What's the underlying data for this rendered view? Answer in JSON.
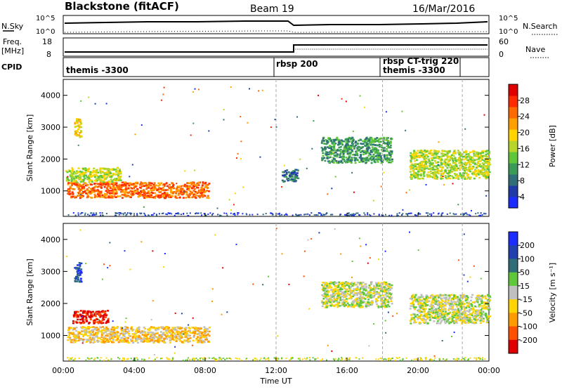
{
  "header": {
    "station": "Blackstone (fitACF)",
    "beam": "Beam 19",
    "date": "16/Mar/2016"
  },
  "noise_panel": {
    "left_label": "N.Sky",
    "right_label": "N.Search",
    "left_ticks": [
      "10^5",
      "10^0"
    ],
    "right_ticks": [
      "10^5",
      "10^0"
    ]
  },
  "freq_panel": {
    "left_label_line1": "Freq.",
    "left_label_line2": "[MHz]",
    "left_ticks": [
      "18",
      "8"
    ],
    "right_label": "Nave",
    "right_ticks": [
      "60",
      "0"
    ]
  },
  "cpid_panel": {
    "label": "CPID",
    "segments": [
      {
        "start_hour": 0,
        "text": "themis -3300"
      },
      {
        "start_hour": 12.0,
        "text": "rbsp 200"
      },
      {
        "start_hour": 18.0,
        "text": "rbsp CT-trig 220"
      },
      {
        "start_hour": 18.0,
        "text": "themis -3300"
      }
    ]
  },
  "chart_data": [
    {
      "type": "heatmap",
      "title": "",
      "xlabel": "",
      "ylabel": "Slant Range [km]",
      "xlim": [
        0,
        24
      ],
      "ylim": [
        200,
        4500
      ],
      "yticks": [
        1000,
        2000,
        3000,
        4000
      ],
      "colorbar": {
        "label": "Power [dB]",
        "ticks": [
          "4",
          "8",
          "12",
          "16",
          "20",
          "24",
          "28"
        ],
        "colors": [
          "#1a2cff",
          "#1f3aa8",
          "#2f6e78",
          "#3a9a58",
          "#5fc83a",
          "#b8d62a",
          "#ffd400",
          "#ffa000",
          "#ff6a00",
          "#ff2a00",
          "#e00000"
        ]
      },
      "regions": [
        {
          "x": [
            0.2,
            8.2
          ],
          "y": [
            800,
            1300
          ],
          "value": 24
        },
        {
          "x": [
            0.1,
            3.2
          ],
          "y": [
            1300,
            1750
          ],
          "value": 16
        },
        {
          "x": [
            0.6,
            1.0
          ],
          "y": [
            2700,
            3300
          ],
          "value": 18
        },
        {
          "x": [
            12.3,
            13.2
          ],
          "y": [
            1300,
            1700
          ],
          "value": 8
        },
        {
          "x": [
            14.5,
            18.5
          ],
          "y": [
            1900,
            2700
          ],
          "value": 9
        },
        {
          "x": [
            19.5,
            24.0
          ],
          "y": [
            1400,
            2300
          ],
          "value": 16
        }
      ]
    },
    {
      "type": "heatmap",
      "title": "",
      "xlabel": "Time UT",
      "ylabel": "Slant Range [km]",
      "xlim": [
        0,
        24
      ],
      "ylim": [
        200,
        4500
      ],
      "xticks": [
        "00:00",
        "04:00",
        "08:00",
        "12:00",
        "16:00",
        "20:00",
        "00:00"
      ],
      "yticks": [
        1000,
        2000,
        3000,
        4000
      ],
      "colorbar": {
        "label": "Velocity [m s⁻¹]",
        "ticks": [
          "200",
          "100",
          "50",
          "15",
          "-15",
          "-50",
          "-100",
          "-200"
        ],
        "colors": [
          "#1a2cff",
          "#2040b0",
          "#2f6e78",
          "#5fc83a",
          "#c0c0c0",
          "#ffd400",
          "#ff9a00",
          "#ff5000",
          "#e00000"
        ]
      },
      "regions": [
        {
          "x": [
            0.2,
            8.2
          ],
          "y": [
            800,
            1300
          ],
          "value": -50
        },
        {
          "x": [
            0.5,
            2.5
          ],
          "y": [
            1400,
            1800
          ],
          "value": -150
        },
        {
          "x": [
            0.6,
            1.0
          ],
          "y": [
            2700,
            3300
          ],
          "value": 150
        },
        {
          "x": [
            14.5,
            18.5
          ],
          "y": [
            1900,
            2700
          ],
          "value": 0
        },
        {
          "x": [
            19.5,
            24.0
          ],
          "y": [
            1400,
            2300
          ],
          "value": 0
        }
      ]
    }
  ]
}
